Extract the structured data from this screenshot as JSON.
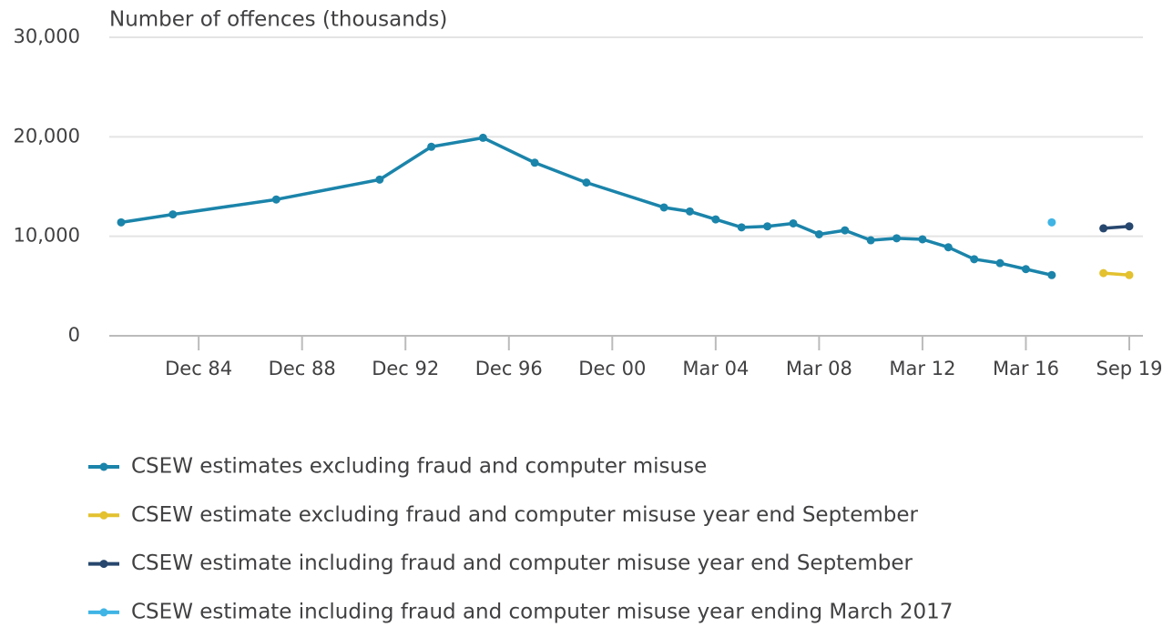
{
  "chart_data": {
    "type": "line",
    "y_label": "Number of offences (thousands)",
    "categories": [
      null,
      null,
      null,
      "Dec 84",
      null,
      null,
      null,
      "Dec 88",
      null,
      null,
      null,
      "Dec 92",
      null,
      null,
      null,
      "Dec 96",
      null,
      null,
      null,
      "Dec 00",
      null,
      null,
      null,
      "Mar 04",
      null,
      null,
      null,
      "Mar 08",
      null,
      null,
      null,
      "Mar 12",
      null,
      null,
      null,
      "Mar 16",
      null,
      null,
      null,
      "Sep 19"
    ],
    "series": [
      {
        "name": "CSEW estimates excluding fraud and computer misuse",
        "color": "#1b84aa",
        "values": [
          11400,
          null,
          12200,
          null,
          null,
          null,
          13700,
          null,
          null,
          null,
          15700,
          null,
          19000,
          null,
          19900,
          null,
          17400,
          null,
          15400,
          null,
          null,
          12900,
          12500,
          11700,
          10900,
          11000,
          11300,
          10200,
          10600,
          9600,
          9800,
          9700,
          8900,
          7700,
          7300,
          6700,
          6100,
          null,
          null,
          null
        ]
      },
      {
        "name": "CSEW estimate excluding fraud and computer misuse year end September",
        "color": "#e3c12f",
        "values": [
          null,
          null,
          null,
          null,
          null,
          null,
          null,
          null,
          null,
          null,
          null,
          null,
          null,
          null,
          null,
          null,
          null,
          null,
          null,
          null,
          null,
          null,
          null,
          null,
          null,
          null,
          null,
          null,
          null,
          null,
          null,
          null,
          null,
          null,
          null,
          null,
          null,
          null,
          6300,
          6100
        ]
      },
      {
        "name": "CSEW estimate including fraud and computer misuse year end September",
        "color": "#27476e",
        "values": [
          null,
          null,
          null,
          null,
          null,
          null,
          null,
          null,
          null,
          null,
          null,
          null,
          null,
          null,
          null,
          null,
          null,
          null,
          null,
          null,
          null,
          null,
          null,
          null,
          null,
          null,
          null,
          null,
          null,
          null,
          null,
          null,
          null,
          null,
          null,
          null,
          null,
          null,
          10800,
          11000
        ]
      },
      {
        "name": "CSEW estimate including fraud and computer misuse year ending March 2017",
        "color": "#3fb4e5",
        "values": [
          null,
          null,
          null,
          null,
          null,
          null,
          null,
          null,
          null,
          null,
          null,
          null,
          null,
          null,
          null,
          null,
          null,
          null,
          null,
          null,
          null,
          null,
          null,
          null,
          null,
          null,
          null,
          null,
          null,
          null,
          null,
          null,
          null,
          null,
          null,
          null,
          11400,
          null,
          null,
          null
        ]
      }
    ],
    "connect_gaps": true,
    "ylim": [
      0,
      30000
    ],
    "yticks": [
      0,
      {
        "value": 10000,
        "label": "10,000"
      },
      {
        "value": 20000,
        "label": "20,000"
      },
      {
        "value": 30000,
        "label": "30,000"
      }
    ],
    "grid": true
  }
}
